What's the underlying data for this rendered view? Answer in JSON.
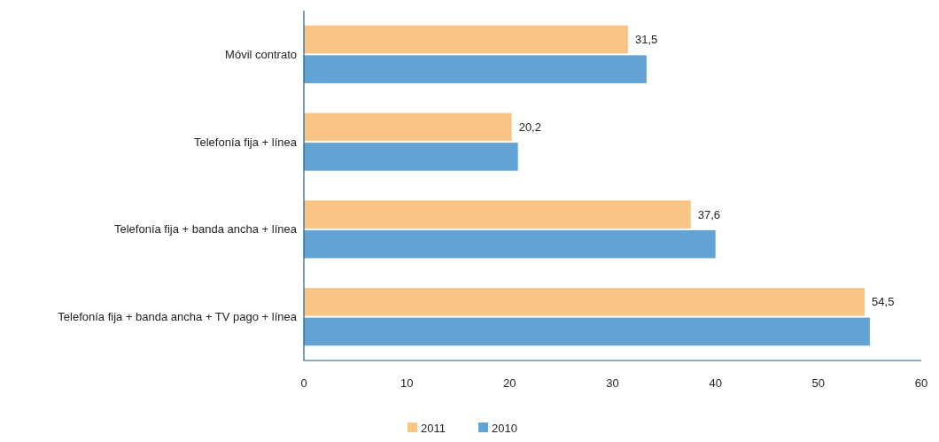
{
  "chart_data": {
    "type": "bar",
    "orientation": "horizontal",
    "categories": [
      "Móvil contrato",
      "Telefonía fija + línea",
      "Telefonía fija + banda ancha + línea",
      "Telefonía fija + banda ancha + TV pago + línea"
    ],
    "series": [
      {
        "name": "2011",
        "color": "#f9c584",
        "values": [
          31.5,
          20.2,
          37.6,
          54.5
        ],
        "value_labels": [
          "31,5",
          "20,2",
          "37,6",
          "54,5"
        ]
      },
      {
        "name": "2010",
        "color": "#62a3d4",
        "values": [
          33.3,
          20.8,
          40.0,
          55.0
        ]
      }
    ],
    "xlim": [
      0,
      60
    ],
    "xticks": [
      0,
      10,
      20,
      30,
      40,
      50,
      60
    ],
    "grid": false,
    "legend": "bottom"
  }
}
